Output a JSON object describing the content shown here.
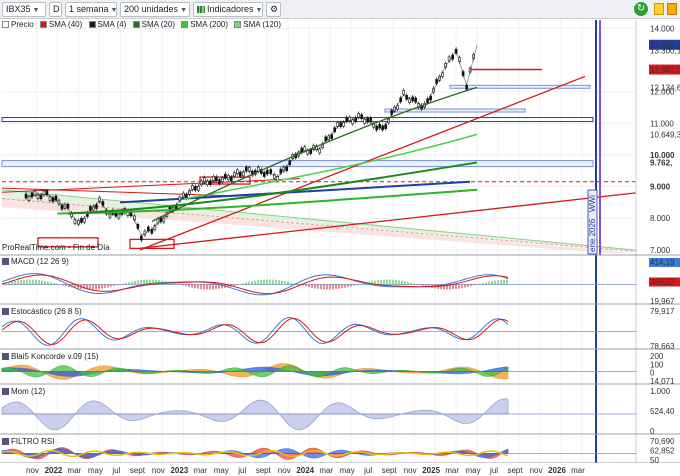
{
  "toolbar": {
    "symbol": "IBX35",
    "mode": "D",
    "period": "1 semana",
    "units": "200 unidades",
    "indicators": "Indicadores"
  },
  "main_legend": [
    "Precio",
    "SMA (40)",
    "SMA (4)",
    "SMA (20)",
    "SMA (200)",
    "SMA (120)"
  ],
  "source_note": "ProRealTime.com - Fin de Día",
  "vertical_annotation": "ene 2026",
  "vertical_annotation_short": "WWi",
  "price_axis": {
    "ticks": [
      "14.000",
      "12.000",
      "11.000",
      "10.000",
      "9.000",
      "8.000",
      "7.000"
    ],
    "labels": [
      {
        "text": "13.480,4",
        "color": "#ffffff",
        "bg": "#1f3fa6"
      },
      {
        "text": "13.300,1",
        "color": "#222222",
        "bg": ""
      },
      {
        "text": "12.697,5",
        "color": "#ffffff",
        "bg": "#d11a1a"
      },
      {
        "text": "12.134,6",
        "color": "#2e9a2e",
        "bg": ""
      },
      {
        "text": "10.649,3",
        "color": "#46b446",
        "bg": ""
      },
      {
        "text": "9.762,",
        "color": "#2a9d2a",
        "bg": ""
      }
    ]
  },
  "x_axis": {
    "labels": [
      "nov",
      "2022",
      "mar",
      "may",
      "jul",
      "sept",
      "nov",
      "2023",
      "mar",
      "may",
      "jul",
      "sept",
      "nov",
      "2024",
      "mar",
      "may",
      "jul",
      "sept",
      "nov",
      "2025",
      "mar",
      "may",
      "jul",
      "sept",
      "nov",
      "2026",
      "mar"
    ],
    "bold_labels": [
      "2022",
      "2023",
      "2024",
      "2025",
      "2026"
    ]
  },
  "panels": {
    "macd": {
      "title": "MACD (12 26 9)",
      "labels": [
        "414,19",
        "384,22",
        "19,967"
      ]
    },
    "stoch": {
      "title": "Estocástico (26 8 5)",
      "labels": [
        "79,917",
        "78,663"
      ]
    },
    "koncorde": {
      "title": "Blai5 Koncorde v.09 (15)",
      "labels": [
        "200",
        "100",
        "0",
        "14,071"
      ]
    },
    "mom": {
      "title": "Mom (12)",
      "labels": [
        "1.000",
        "524,40",
        "0"
      ]
    },
    "rsi": {
      "title": "FILTRO RSI",
      "labels": [
        "70,690",
        "62,852",
        "50"
      ]
    }
  },
  "chart_data": {
    "type": "line",
    "title": "IBX35",
    "time_range": [
      "2021-10",
      "2026-04"
    ],
    "last_price": 13480.4,
    "series": [
      {
        "name": "Precio",
        "x_dates": [
          "2021-10",
          "2021-12",
          "2022-02",
          "2022-03",
          "2022-05",
          "2022-06",
          "2022-08",
          "2022-09",
          "2022-10",
          "2022-12",
          "2023-01",
          "2023-03",
          "2023-05",
          "2023-07",
          "2023-09",
          "2023-10",
          "2023-12",
          "2024-02",
          "2024-04",
          "2024-06",
          "2024-08",
          "2024-10",
          "2024-12",
          "2025-02",
          "2025-03",
          "2025-04",
          "2025-05"
        ],
        "values": [
          8700,
          8750,
          8300,
          7800,
          8550,
          8100,
          8200,
          7450,
          7650,
          8300,
          8700,
          9150,
          9250,
          9500,
          9450,
          9300,
          10100,
          10200,
          11000,
          11200,
          10800,
          11900,
          11500,
          12800,
          13300,
          12200,
          13480
        ]
      },
      {
        "name": "SMA (200)",
        "values": [
          8150,
          8900
        ]
      },
      {
        "name": "SMA (120)",
        "values": [
          8150,
          9762
        ]
      },
      {
        "name": "SMA (40)",
        "values": [
          8900,
          10649
        ]
      },
      {
        "name": "SMA (20)",
        "values": [
          11000,
          12134
        ]
      },
      {
        "name": "SMA (4)",
        "values": [
          12697
        ]
      }
    ],
    "ylim": [
      6900,
      14200
    ]
  }
}
